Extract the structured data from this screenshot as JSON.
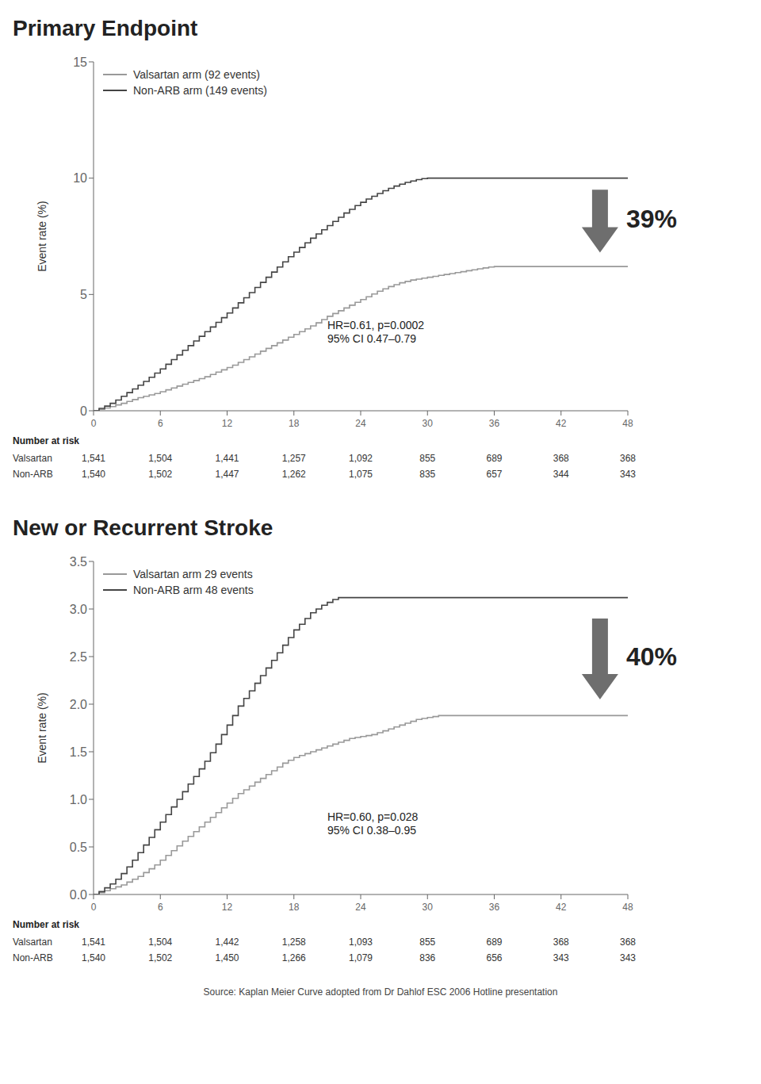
{
  "chart_data": [
    {
      "type": "step",
      "title": "Primary Endpoint",
      "y_label": "Event rate (%)",
      "x": [
        0,
        0.5,
        1,
        1.5,
        2,
        2.5,
        3,
        3.5,
        4,
        4.5,
        5,
        5.5,
        6,
        6.5,
        7,
        7.5,
        8,
        8.5,
        9,
        9.5,
        10,
        10.5,
        11,
        11.5,
        12,
        12.5,
        13,
        13.5,
        14,
        14.5,
        15,
        15.5,
        16,
        16.5,
        17,
        17.5,
        18,
        18.5,
        19,
        19.5,
        20,
        20.5,
        21,
        21.5,
        22,
        22.5,
        23,
        23.5,
        24,
        24.5,
        25,
        25.5,
        26,
        26.5,
        27,
        27.5,
        28,
        28.5,
        29,
        29.5,
        30,
        30.5,
        31,
        31.5,
        32,
        32.5,
        33,
        33.5,
        34,
        34.5,
        35,
        35.5,
        36,
        36.5,
        37,
        37.5,
        38,
        38.5,
        39,
        39.5,
        40,
        40.5,
        41,
        41.5,
        42,
        42.5,
        43,
        43.5,
        44,
        44.5,
        45,
        45.5,
        46,
        46.5,
        47,
        47.5,
        48
      ],
      "series": [
        {
          "name": "Valsartan arm (92 events)",
          "color": "#999999",
          "values": [
            0,
            0.06,
            0.12,
            0.18,
            0.25,
            0.32,
            0.4,
            0.48,
            0.56,
            0.62,
            0.68,
            0.74,
            0.82,
            0.9,
            0.98,
            1.06,
            1.14,
            1.22,
            1.3,
            1.38,
            1.46,
            1.56,
            1.66,
            1.76,
            1.86,
            1.96,
            2.08,
            2.2,
            2.32,
            2.44,
            2.56,
            2.68,
            2.8,
            2.92,
            3.04,
            3.16,
            3.28,
            3.4,
            3.52,
            3.65,
            3.78,
            3.92,
            4.06,
            4.18,
            4.3,
            4.42,
            4.54,
            4.66,
            4.78,
            4.9,
            5.02,
            5.14,
            5.24,
            5.34,
            5.42,
            5.5,
            5.56,
            5.62,
            5.66,
            5.7,
            5.74,
            5.78,
            5.82,
            5.86,
            5.9,
            5.94,
            5.98,
            6.02,
            6.06,
            6.1,
            6.14,
            6.18,
            6.2,
            6.2,
            6.2,
            6.2,
            6.2,
            6.2,
            6.2,
            6.2,
            6.2,
            6.2,
            6.2,
            6.2,
            6.2,
            6.2,
            6.2,
            6.2,
            6.2,
            6.2,
            6.2,
            6.2,
            6.2,
            6.2,
            6.2,
            6.2,
            6.2
          ]
        },
        {
          "name": "Non-ARB arm (149 events)",
          "color": "#444444",
          "values": [
            0,
            0.1,
            0.2,
            0.32,
            0.46,
            0.62,
            0.78,
            0.94,
            1.1,
            1.26,
            1.44,
            1.62,
            1.8,
            2.0,
            2.2,
            2.4,
            2.6,
            2.8,
            3.0,
            3.2,
            3.4,
            3.6,
            3.8,
            4.0,
            4.2,
            4.42,
            4.64,
            4.86,
            5.08,
            5.3,
            5.52,
            5.74,
            5.96,
            6.18,
            6.4,
            6.62,
            6.82,
            7.02,
            7.22,
            7.42,
            7.6,
            7.78,
            7.96,
            8.14,
            8.32,
            8.5,
            8.66,
            8.82,
            8.96,
            9.1,
            9.22,
            9.34,
            9.46,
            9.56,
            9.66,
            9.74,
            9.82,
            9.88,
            9.94,
            9.98,
            10.0,
            10.0,
            10.0,
            10.0,
            10.0,
            10.0,
            10.0,
            10.0,
            10.0,
            10.0,
            10.0,
            10.0,
            10.0,
            10.0,
            10.0,
            10.0,
            10.0,
            10.0,
            10.0,
            10.0,
            10.0,
            10.0,
            10.0,
            10.0,
            10.0,
            10.0,
            10.0,
            10.0,
            10.0,
            10.0,
            10.0,
            10.0,
            10.0,
            10.0,
            10.0,
            10.0,
            10.0
          ]
        }
      ],
      "xlim": [
        0,
        48
      ],
      "ylim": [
        0,
        15
      ],
      "xticks": [
        0,
        6,
        12,
        18,
        24,
        30,
        36,
        42,
        48
      ],
      "yticks": [
        0,
        5,
        10,
        15
      ],
      "grid": false,
      "legend": "upper left",
      "annotations": [
        {
          "text": "HR=0.61, p=0.0002\n95% CI 0.47–0.79",
          "x": 21,
          "y": 2.8
        }
      ],
      "arrow": {
        "x": 45.5,
        "y_from": 9.5,
        "y_to": 6.8,
        "label": "39%",
        "color": "#6e6e6e"
      },
      "risk_table": {
        "header": "Number at risk",
        "rows": [
          {
            "name": "Valsartan",
            "values": [
              "1,541",
              "1,504",
              "1,441",
              "1,257",
              "1,092",
              "855",
              "689",
              "368",
              "368"
            ]
          },
          {
            "name": "Non-ARB",
            "values": [
              "1,540",
              "1,502",
              "1,447",
              "1,262",
              "1,075",
              "835",
              "657",
              "344",
              "343"
            ]
          }
        ]
      }
    },
    {
      "type": "step",
      "title": "New or Recurrent Stroke",
      "y_label": "Event rate (%)",
      "x": [
        0,
        0.5,
        1,
        1.5,
        2,
        2.5,
        3,
        3.5,
        4,
        4.5,
        5,
        5.5,
        6,
        6.5,
        7,
        7.5,
        8,
        8.5,
        9,
        9.5,
        10,
        10.5,
        11,
        11.5,
        12,
        12.5,
        13,
        13.5,
        14,
        14.5,
        15,
        15.5,
        16,
        16.5,
        17,
        17.5,
        18,
        18.5,
        19,
        19.5,
        20,
        20.5,
        21,
        21.5,
        22,
        22.5,
        23,
        23.5,
        24,
        24.5,
        25,
        25.5,
        26,
        26.5,
        27,
        27.5,
        28,
        28.5,
        29,
        29.5,
        30,
        30.5,
        31,
        31.5,
        32,
        32.5,
        33,
        33.5,
        34,
        34.5,
        35,
        35.5,
        36,
        36.5,
        37,
        37.5,
        38,
        38.5,
        39,
        39.5,
        40,
        40.5,
        41,
        41.5,
        42,
        42.5,
        43,
        43.5,
        44,
        44.5,
        45,
        45.5,
        46,
        46.5,
        47,
        47.5,
        48
      ],
      "series": [
        {
          "name": "Valsartan arm 29 events",
          "color": "#999999",
          "values": [
            0,
            0.02,
            0.04,
            0.06,
            0.08,
            0.1,
            0.13,
            0.16,
            0.19,
            0.23,
            0.27,
            0.31,
            0.36,
            0.41,
            0.46,
            0.51,
            0.56,
            0.61,
            0.66,
            0.71,
            0.76,
            0.81,
            0.86,
            0.91,
            0.96,
            1.01,
            1.06,
            1.1,
            1.14,
            1.18,
            1.22,
            1.26,
            1.3,
            1.34,
            1.38,
            1.41,
            1.44,
            1.46,
            1.48,
            1.5,
            1.52,
            1.54,
            1.56,
            1.58,
            1.6,
            1.62,
            1.64,
            1.65,
            1.66,
            1.67,
            1.68,
            1.7,
            1.72,
            1.74,
            1.76,
            1.78,
            1.8,
            1.82,
            1.84,
            1.85,
            1.86,
            1.87,
            1.88,
            1.88,
            1.88,
            1.88,
            1.88,
            1.88,
            1.88,
            1.88,
            1.88,
            1.88,
            1.88,
            1.88,
            1.88,
            1.88,
            1.88,
            1.88,
            1.88,
            1.88,
            1.88,
            1.88,
            1.88,
            1.88,
            1.88,
            1.88,
            1.88,
            1.88,
            1.88,
            1.88,
            1.88,
            1.88,
            1.88,
            1.88,
            1.88,
            1.88,
            1.88
          ]
        },
        {
          "name": "Non-ARB arm 48 events",
          "color": "#444444",
          "values": [
            0,
            0.03,
            0.07,
            0.11,
            0.16,
            0.22,
            0.29,
            0.36,
            0.44,
            0.52,
            0.6,
            0.68,
            0.76,
            0.84,
            0.92,
            1.0,
            1.08,
            1.16,
            1.24,
            1.32,
            1.4,
            1.49,
            1.58,
            1.68,
            1.78,
            1.88,
            1.98,
            2.06,
            2.14,
            2.22,
            2.3,
            2.38,
            2.46,
            2.54,
            2.62,
            2.7,
            2.78,
            2.84,
            2.9,
            2.96,
            3.0,
            3.04,
            3.07,
            3.1,
            3.12,
            3.12,
            3.12,
            3.12,
            3.12,
            3.12,
            3.12,
            3.12,
            3.12,
            3.12,
            3.12,
            3.12,
            3.12,
            3.12,
            3.12,
            3.12,
            3.12,
            3.12,
            3.12,
            3.12,
            3.12,
            3.12,
            3.12,
            3.12,
            3.12,
            3.12,
            3.12,
            3.12,
            3.12,
            3.12,
            3.12,
            3.12,
            3.12,
            3.12,
            3.12,
            3.12,
            3.12,
            3.12,
            3.12,
            3.12,
            3.12,
            3.12,
            3.12,
            3.12,
            3.12,
            3.12,
            3.12,
            3.12,
            3.12,
            3.12,
            3.12,
            3.12,
            3.12
          ]
        }
      ],
      "xlim": [
        0,
        48
      ],
      "ylim": [
        0,
        3.5
      ],
      "xticks": [
        0,
        6,
        12,
        18,
        24,
        30,
        36,
        42,
        48
      ],
      "yticks": [
        {
          "value": 0,
          "label": "0.0"
        },
        0.5,
        {
          "value": 1,
          "label": "1.0"
        },
        1.5,
        {
          "value": 2,
          "label": "2.0"
        },
        2.5,
        {
          "value": 3,
          "label": "3.0"
        },
        3.5
      ],
      "grid": false,
      "legend": "upper left",
      "annotations": [
        {
          "text": "HR=0.60, p=0.028\n95% CI 0.38–0.95",
          "x": 21,
          "y": 0.6
        }
      ],
      "arrow": {
        "x": 45.5,
        "y_from": 2.9,
        "y_to": 2.05,
        "label": "40%",
        "color": "#6e6e6e"
      },
      "risk_table": {
        "header": "Number at risk",
        "rows": [
          {
            "name": "Valsartan",
            "values": [
              "1,541",
              "1,504",
              "1,442",
              "1,258",
              "1,093",
              "855",
              "689",
              "368",
              "368"
            ]
          },
          {
            "name": "Non-ARB",
            "values": [
              "1,540",
              "1,502",
              "1,450",
              "1,266",
              "1,079",
              "836",
              "656",
              "343",
              "343"
            ]
          }
        ]
      },
      "source": "Source: Kaplan Meier Curve adopted from Dr Dahlof ESC 2006 Hotline presentation"
    }
  ]
}
